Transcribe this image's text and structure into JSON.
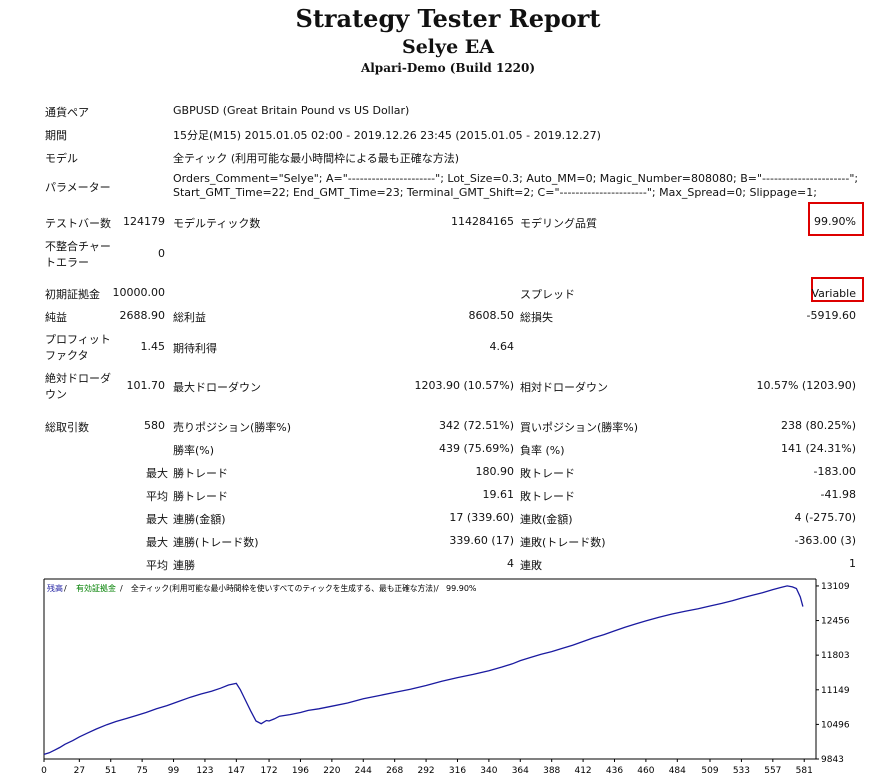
{
  "header": {
    "title": "Strategy Tester Report",
    "ea_name": "Selye EA",
    "server": "Alpari-Demo (Build 1220)"
  },
  "info": {
    "symbol_label": "通貨ペア",
    "symbol_value": "GBPUSD (Great Britain Pound vs US Dollar)",
    "period_label": "期間",
    "period_value": "15分足(M15) 2015.01.05 02:00 - 2019.12.26 23:45 (2015.01.05 - 2019.12.27)",
    "model_label": "モデル",
    "model_value": "全ティック (利用可能な最小時間枠による最も正確な方法)",
    "params_label": "パラメーター",
    "params_line1": "Orders_Comment=\"Selye\"; A=\"----------------------\"; Lot_Size=0.3; Auto_MM=0; Magic_Number=808080; B=\"----------------------\";",
    "params_line2": "Start_GMT_Time=22; End_GMT_Time=23; Terminal_GMT_Shift=2; C=\"----------------------\"; Max_Spread=0; Slippage=1;"
  },
  "stats": {
    "bars_label": "テストバー数",
    "bars_value": "124179",
    "ticks_label": "モデルティック数",
    "ticks_value": "114284165",
    "quality_label": "モデリング品質",
    "quality_value": "99.90%",
    "mismatch_label_1": "不整合チャー",
    "mismatch_label_2": "トエラー",
    "mismatch_value": "0",
    "deposit_label": "初期証拠金",
    "deposit_value": "10000.00",
    "spread_label": "スプレッド",
    "spread_value": "Variable",
    "net_label": "純益",
    "net_value": "2688.90",
    "gross_profit_label": "総利益",
    "gross_profit_value": "8608.50",
    "gross_loss_label": "総損失",
    "gross_loss_value": "-5919.60",
    "pf_label_1": "プロフィット",
    "pf_label_2": "ファクタ",
    "pf_value": "1.45",
    "expected_label": "期待利得",
    "expected_value": "4.64",
    "abs_dd_label_1": "絶対ドローダ",
    "abs_dd_label_2": "ウン",
    "abs_dd_value": "101.70",
    "max_dd_label": "最大ドローダウン",
    "max_dd_value": "1203.90 (10.57%)",
    "rel_dd_label": "相対ドローダウン",
    "rel_dd_value": "10.57% (1203.90)",
    "trades_label": "総取引数",
    "trades_value": "580",
    "short_label": "売りポジション(勝率%)",
    "short_value": "342 (72.51%)",
    "long_label": "買いポジション(勝率%)",
    "long_value": "238 (80.25%)",
    "win_label": "勝率(%)",
    "win_value": "439 (75.69%)",
    "loss_label": "負率 (%)",
    "loss_value": "141 (24.31%)",
    "max_prefix": "最大",
    "avg_prefix": "平均",
    "largest_win_label": "勝トレード",
    "largest_win_value": "180.90",
    "largest_loss_label": "敗トレード",
    "largest_loss_value": "-183.00",
    "avg_win_label": "勝トレード",
    "avg_win_value": "19.61",
    "avg_loss_label": "敗トレード",
    "avg_loss_value": "-41.98",
    "cons_wins_money_label": "連勝(金額)",
    "cons_wins_money_value": "17 (339.60)",
    "cons_losses_money_label": "連敗(金額)",
    "cons_losses_money_value": "4 (-275.70)",
    "cons_wins_trades_label": "連勝(トレード数)",
    "cons_wins_trades_value": "339.60 (17)",
    "cons_losses_trades_label": "連敗(トレード数)",
    "cons_losses_trades_value": "-363.00 (3)",
    "avg_cons_wins_label": "連勝",
    "avg_cons_wins_value": "4",
    "avg_cons_losses_label": "連敗",
    "avg_cons_losses_value": "1"
  },
  "chart_legend": {
    "balance": "残高",
    "sep1": " / ",
    "equity": "有効証拠金",
    "sep2": " / ",
    "model": "全ティック(利用可能な最小時間枠を使いすべてのティックを生成する、最も正確な方法)",
    "sep3": " / ",
    "quality": "99.90%"
  },
  "colors": {
    "balance_line": "#1a1aa0",
    "equity_legend": "#008000",
    "highlight_box": "#dd0000"
  },
  "chart_data": {
    "type": "line",
    "title": "",
    "xlabel": "",
    "ylabel": "",
    "x_ticks": [
      0,
      27,
      51,
      75,
      99,
      123,
      147,
      172,
      196,
      220,
      244,
      268,
      292,
      316,
      340,
      364,
      388,
      412,
      436,
      460,
      484,
      509,
      533,
      557,
      581
    ],
    "y_ticks": [
      9843,
      10496,
      11149,
      11803,
      12456,
      13109
    ],
    "xlim": [
      0,
      590
    ],
    "ylim": [
      9843,
      13240
    ],
    "grid": false,
    "series": [
      {
        "name": "残高",
        "x": [
          0,
          4,
          8,
          12,
          16,
          22,
          27,
          33,
          40,
          48,
          55,
          62,
          70,
          78,
          86,
          94,
          103,
          112,
          120,
          128,
          135,
          141,
          147,
          150,
          152,
          155,
          158,
          162,
          166,
          170,
          172,
          176,
          180,
          188,
          196,
          202,
          210,
          220,
          232,
          244,
          256,
          268,
          280,
          292,
          304,
          316,
          328,
          340,
          350,
          358,
          364,
          372,
          380,
          388,
          396,
          404,
          412,
          420,
          428,
          436,
          444,
          452,
          460,
          470,
          480,
          490,
          500,
          509,
          518,
          526,
          533,
          541,
          549,
          557,
          563,
          568,
          572,
          575,
          578,
          580
        ],
        "y": [
          9930,
          9960,
          10010,
          10060,
          10120,
          10190,
          10260,
          10330,
          10410,
          10490,
          10550,
          10600,
          10660,
          10720,
          10790,
          10850,
          10930,
          11010,
          11070,
          11120,
          11180,
          11240,
          11270,
          11150,
          11050,
          10900,
          10750,
          10560,
          10510,
          10570,
          10560,
          10600,
          10650,
          10680,
          10720,
          10760,
          10790,
          10840,
          10900,
          10980,
          11040,
          11100,
          11160,
          11230,
          11310,
          11380,
          11440,
          11510,
          11580,
          11640,
          11700,
          11760,
          11820,
          11870,
          11930,
          11990,
          12060,
          12130,
          12190,
          12260,
          12330,
          12390,
          12450,
          12520,
          12580,
          12630,
          12680,
          12730,
          12780,
          12830,
          12880,
          12930,
          12980,
          13040,
          13080,
          13110,
          13090,
          13060,
          12900,
          12720
        ]
      }
    ]
  }
}
